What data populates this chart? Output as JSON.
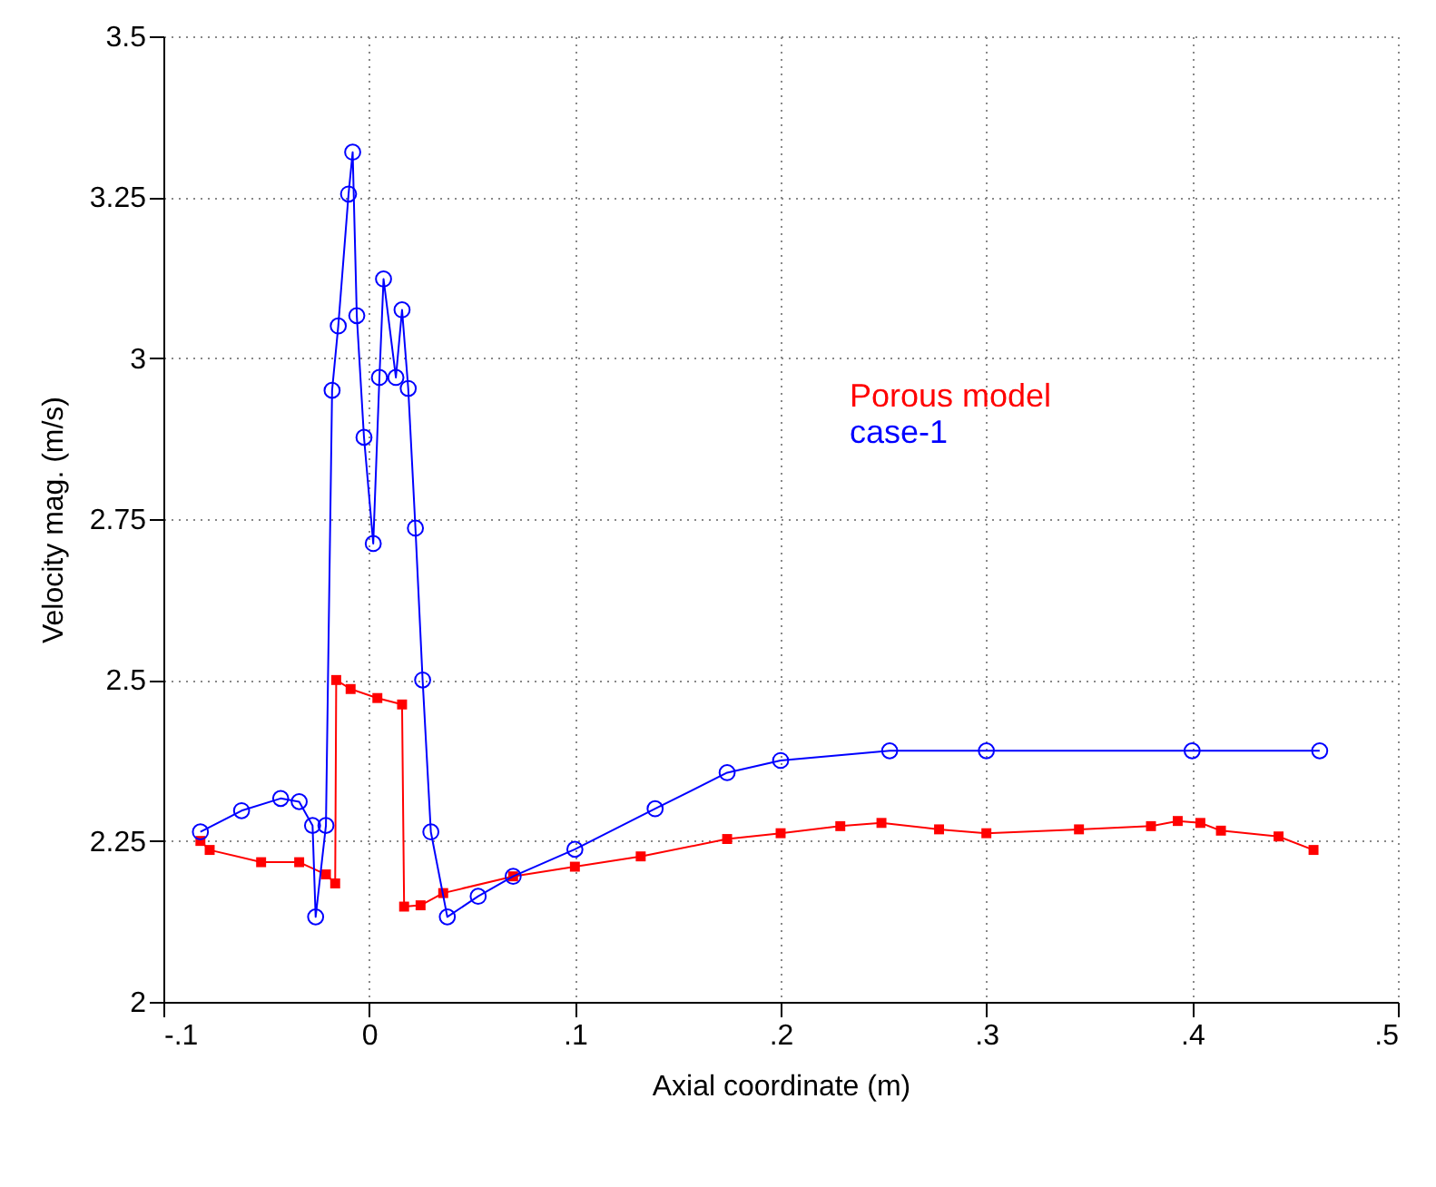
{
  "chart_data": {
    "type": "line",
    "xlabel": "Axial coordinate (m)",
    "ylabel": "Velocity mag. (m/s)",
    "xlim": [
      -0.1,
      0.5
    ],
    "xticks": [
      {
        "value": -0.1,
        "label": "-.1"
      },
      0,
      {
        "value": 0.1,
        "label": ".1"
      },
      {
        "value": 0.2,
        "label": ".2"
      },
      {
        "value": 0.3,
        "label": ".3"
      },
      {
        "value": 0.4,
        "label": ".4"
      },
      {
        "value": 0.5,
        "label": ".5"
      }
    ],
    "ylim": [
      2,
      3.5
    ],
    "yticks": [
      2,
      2.25,
      2.5,
      2.75,
      3,
      3.25,
      3.5
    ],
    "grid": true,
    "legend": "top right",
    "series": [
      {
        "name": "Porous model",
        "color": "#ff0000",
        "marker": "square",
        "x": [
          -0.082,
          -0.0775,
          -0.0525,
          -0.034,
          -0.021,
          -0.0165,
          -0.016,
          -0.009,
          0.004,
          0.016,
          0.017,
          0.025,
          0.036,
          0.07,
          0.1,
          0.132,
          0.174,
          0.2,
          0.229,
          0.249,
          0.277,
          0.3,
          0.345,
          0.38,
          0.393,
          0.404,
          0.414,
          0.442,
          0.459
        ],
        "values": [
          2.25,
          2.236,
          2.217,
          2.217,
          2.198,
          2.184,
          2.5,
          2.486,
          2.472,
          2.462,
          2.148,
          2.15,
          2.169,
          2.195,
          2.21,
          2.226,
          2.253,
          2.262,
          2.273,
          2.278,
          2.268,
          2.262,
          2.268,
          2.273,
          2.281,
          2.278,
          2.266,
          2.257,
          2.236
        ]
      },
      {
        "name": "case-1",
        "color": "#0000ff",
        "marker": "circle",
        "x": [
          -0.082,
          -0.062,
          -0.043,
          -0.034,
          -0.0275,
          -0.026,
          -0.021,
          -0.018,
          -0.015,
          -0.01,
          -0.008,
          -0.006,
          -0.0025,
          0.002,
          0.005,
          0.007,
          0.013,
          0.016,
          0.019,
          0.0225,
          0.026,
          0.03,
          0.038,
          0.053,
          0.07,
          0.1,
          0.139,
          0.174,
          0.2,
          0.253,
          0.3,
          0.4,
          0.462
        ],
        "values": [
          2.264,
          2.297,
          2.316,
          2.311,
          2.274,
          2.132,
          2.274,
          2.95,
          3.05,
          3.255,
          3.32,
          3.066,
          2.877,
          2.712,
          2.97,
          3.123,
          2.97,
          3.075,
          2.953,
          2.736,
          2.5,
          2.264,
          2.132,
          2.164,
          2.195,
          2.237,
          2.3,
          2.356,
          2.375,
          2.39,
          2.39,
          2.39,
          2.39
        ]
      }
    ]
  }
}
